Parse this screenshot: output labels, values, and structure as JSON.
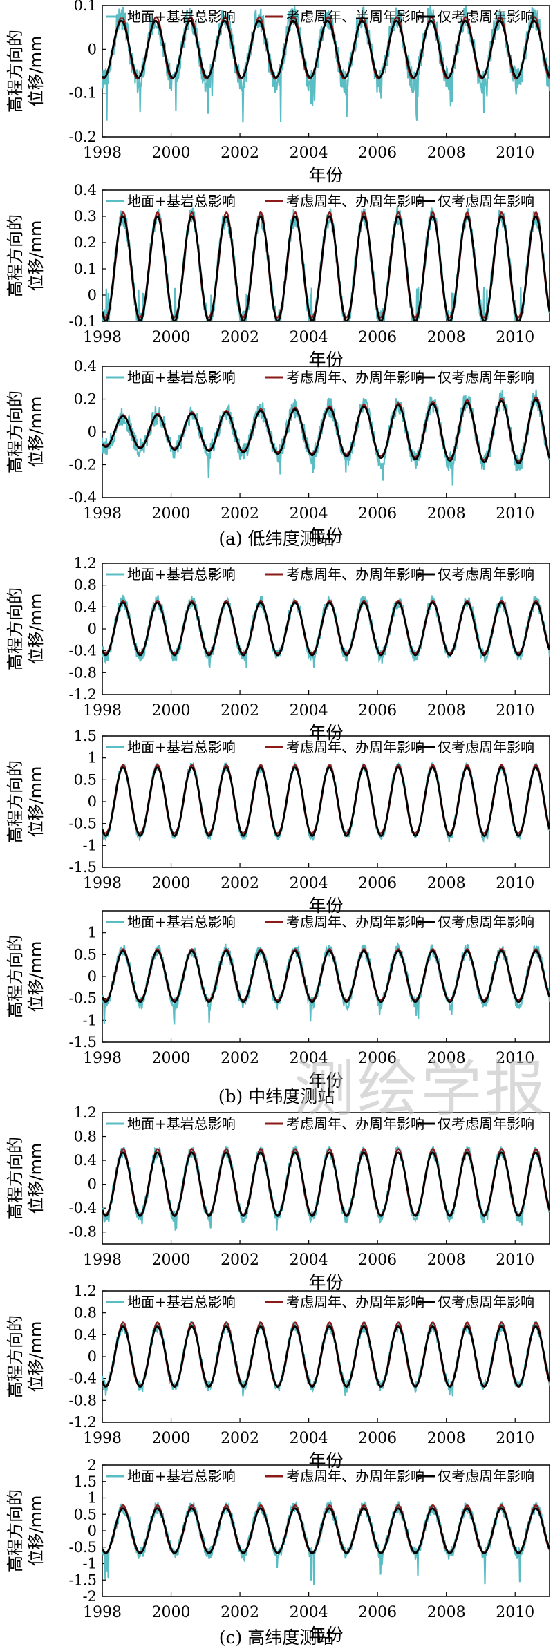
{
  "figure": {
    "watermark": "测绘学报",
    "panel_groups": [
      {
        "caption": "(a) 低纬度测站"
      },
      {
        "caption": "(b) 中纬度测站"
      },
      {
        "caption": "(c) 高纬度测站"
      }
    ]
  },
  "colors": {
    "total": "#5bbdc4",
    "semi": "#8b1a1a",
    "annual": "#000000"
  },
  "chart_data": [
    {
      "type": "line",
      "group": "a",
      "title": "",
      "xlabel": "年份",
      "ylabel": [
        "高程方向的",
        "位移/mm"
      ],
      "xlim": [
        1998,
        2011
      ],
      "ylim": [
        -0.2,
        0.1
      ],
      "yticks": [
        "0.1",
        "0",
        "-0.1",
        "-0.2"
      ],
      "ytick_values": [
        0.1,
        0,
        -0.1,
        -0.2
      ],
      "xticks": [
        "1998",
        "2000",
        "2002",
        "2004",
        "2006",
        "2008",
        "2010"
      ],
      "legend": [
        "地面+基岩总影响",
        "考虑周年、半周年影响",
        "仅考虑周年影响"
      ],
      "series": [
        {
          "name": "地面+基岩总影响",
          "amplitude": 0.075,
          "noise": 0.03,
          "spike": -0.17,
          "phase": 0.55
        },
        {
          "name": "考虑周年、半周年影响",
          "amplitude": 0.07,
          "phase": 0.55
        },
        {
          "name": "仅考虑周年影响",
          "amplitude": 0.065,
          "phase": 0.55
        }
      ]
    },
    {
      "type": "line",
      "group": "a",
      "title": "",
      "xlabel": "年份",
      "ylabel": [
        "高程方向的",
        "位移/mm"
      ],
      "xlim": [
        1998,
        2011
      ],
      "ylim": [
        -0.1,
        0.4
      ],
      "yticks": [
        "0.4",
        "0.3",
        "0.2",
        "0.1",
        "0",
        "-0.1"
      ],
      "ytick_values": [
        0.4,
        0.3,
        0.2,
        0.1,
        0,
        -0.1
      ],
      "xticks": [
        "1998",
        "2000",
        "2002",
        "2004",
        "2006",
        "2008",
        "2010"
      ],
      "legend": [
        "地面+基岩总影响",
        "考虑周年、办周年影响",
        "仅考虑周年影响"
      ],
      "series": [
        {
          "name": "地面+基岩总影响",
          "offset": 0.1,
          "amplitude": 0.2,
          "noise": 0.04,
          "spike": -0.1,
          "phase": 0.6
        },
        {
          "name": "考虑周年、办周年影响",
          "offset": 0.1,
          "amplitude": 0.2,
          "phase": 0.6
        },
        {
          "name": "仅考虑周年影响",
          "offset": 0.1,
          "amplitude": 0.2,
          "phase": 0.6
        }
      ]
    },
    {
      "type": "line",
      "group": "a",
      "title": "",
      "xlabel": "年份",
      "ylabel": [
        "高程方向的",
        "位移/mm"
      ],
      "xlim": [
        1998,
        2011
      ],
      "ylim": [
        -0.4,
        0.4
      ],
      "yticks": [
        "0.4",
        "0.2",
        "0",
        "-0.2",
        "-0.4"
      ],
      "ytick_values": [
        0.4,
        0.2,
        0,
        -0.2,
        -0.4
      ],
      "xticks": [
        "1998",
        "2000",
        "2002",
        "2004",
        "2006",
        "2008",
        "2010"
      ],
      "legend": [
        "地面+基岩总影响",
        "考虑周年、办周年影响",
        "仅考虑周年影响"
      ],
      "series": [
        {
          "name": "地面+基岩总影响",
          "amplitude_start": 0.09,
          "amplitude_end": 0.21,
          "noise": 0.06,
          "spike": -0.33,
          "phase": 0.6
        },
        {
          "name": "考虑周年、办周年影响",
          "amplitude_start": 0.09,
          "amplitude_end": 0.2,
          "phase": 0.6
        },
        {
          "name": "仅考虑周年影响",
          "amplitude_start": 0.09,
          "amplitude_end": 0.2,
          "phase": 0.6
        }
      ]
    },
    {
      "type": "line",
      "group": "b",
      "title": "",
      "xlabel": "年份",
      "ylabel": [
        "高程方向的",
        "位移/mm"
      ],
      "xlim": [
        1998,
        2011
      ],
      "ylim": [
        -1.2,
        1.2
      ],
      "yticks": [
        "1.2",
        "0.8",
        "0.4",
        "0",
        "-0.4",
        "-0.8",
        "-1.2"
      ],
      "ytick_values": [
        1.2,
        0.8,
        0.4,
        0,
        -0.4,
        -0.8,
        -1.2
      ],
      "xticks": [
        "1998",
        "2000",
        "2002",
        "2004",
        "2006",
        "2008",
        "2010"
      ],
      "legend": [
        "地面+基岩总影响",
        "考虑周年、办周年影响",
        "仅考虑周年影响"
      ],
      "series": [
        {
          "name": "地面+基岩总影响",
          "amplitude": 0.5,
          "noise": 0.12,
          "spike": -0.75,
          "phase": 0.6
        },
        {
          "name": "考虑周年、办周年影响",
          "amplitude": 0.48,
          "phase": 0.6
        },
        {
          "name": "仅考虑周年影响",
          "amplitude": 0.48,
          "phase": 0.6
        }
      ]
    },
    {
      "type": "line",
      "group": "b",
      "title": "",
      "xlabel": "年份",
      "ylabel": [
        "高程方向的",
        "位移/mm"
      ],
      "xlim": [
        1998,
        2011
      ],
      "ylim": [
        -1.5,
        1.5
      ],
      "yticks": [
        "1.5",
        "1",
        "0.5",
        "0",
        "-0.5",
        "-1",
        "-1.5"
      ],
      "ytick_values": [
        1.5,
        1,
        0.5,
        0,
        -0.5,
        -1,
        -1.5
      ],
      "xticks": [
        "1998",
        "2000",
        "2002",
        "2004",
        "2006",
        "2008",
        "2010"
      ],
      "legend": [
        "地面+基岩总影响",
        "考虑周年、办周年影响",
        "仅考虑周年影响"
      ],
      "series": [
        {
          "name": "地面+基岩总影响",
          "amplitude": 0.8,
          "noise": 0.1,
          "spike": -1.0,
          "phase": 0.6
        },
        {
          "name": "考虑周年、办周年影响",
          "amplitude": 0.78,
          "phase": 0.6
        },
        {
          "name": "仅考虑周年影响",
          "amplitude": 0.78,
          "phase": 0.6
        }
      ]
    },
    {
      "type": "line",
      "group": "b",
      "title": "",
      "xlabel": "年份",
      "ylabel": [
        "高程方向的",
        "位移/mm"
      ],
      "xlim": [
        1998,
        2011
      ],
      "ylim": [
        -1.5,
        1.5
      ],
      "yticks": [
        "1",
        "0.5",
        "0",
        "-0.5",
        "-1",
        "-1.5"
      ],
      "ytick_values": [
        1,
        0.5,
        0,
        -0.5,
        -1,
        -1.5
      ],
      "xticks": [
        "1998",
        "2000",
        "2002",
        "2004",
        "2006",
        "2008",
        "2010"
      ],
      "legend": [
        "地面+基岩总影响",
        "考虑周年、办周年影响",
        "仅考虑周年影响"
      ],
      "series": [
        {
          "name": "地面+基岩总影响",
          "amplitude": 0.6,
          "noise": 0.15,
          "spike": -1.1,
          "phase": 0.6
        },
        {
          "name": "考虑周年、办周年影响",
          "amplitude": 0.58,
          "phase": 0.6
        },
        {
          "name": "仅考虑周年影响",
          "amplitude": 0.58,
          "phase": 0.6
        }
      ]
    },
    {
      "type": "line",
      "group": "c",
      "title": "",
      "xlabel": "年份",
      "ylabel": [
        "高程方向的",
        "位移/mm"
      ],
      "xlim": [
        1998,
        2011
      ],
      "ylim": [
        -1.0,
        1.2
      ],
      "yticks": [
        "1.2",
        "0.8",
        "0.4",
        "0",
        "-0.4",
        "-0.8"
      ],
      "ytick_values": [
        1.2,
        0.8,
        0.4,
        0,
        -0.4,
        -0.8
      ],
      "xticks": [
        "1998",
        "2000",
        "2002",
        "2004",
        "2006",
        "2008",
        "2010"
      ],
      "legend": [
        "地面+基岩总影响",
        "考虑周年、办周年影响",
        "仅考虑周年影响"
      ],
      "series": [
        {
          "name": "地面+基岩总影响",
          "amplitude": 0.55,
          "noise": 0.1,
          "spike": -0.85,
          "phase": 0.6
        },
        {
          "name": "考虑周年、办周年影响",
          "amplitude": 0.55,
          "phase": 0.6
        },
        {
          "name": "仅考虑周年影响",
          "amplitude": 0.53,
          "phase": 0.6
        }
      ]
    },
    {
      "type": "line",
      "group": "c",
      "title": "",
      "xlabel": "年份",
      "ylabel": [
        "高程方向的",
        "位移/mm"
      ],
      "xlim": [
        1998,
        2011
      ],
      "ylim": [
        -1.2,
        1.2
      ],
      "yticks": [
        "1.2",
        "0.8",
        "0.4",
        "0",
        "-0.4",
        "-0.8",
        "-1.2"
      ],
      "ytick_values": [
        1.2,
        0.8,
        0.4,
        0,
        -0.4,
        -0.8,
        -1.2
      ],
      "xticks": [
        "1998",
        "2000",
        "2002",
        "2004",
        "2006",
        "2008",
        "2010"
      ],
      "legend": [
        "地面+基岩总影响",
        "考虑周年、办周年影响",
        "仅考虑周年影响"
      ],
      "series": [
        {
          "name": "地面+基岩总影响",
          "amplitude": 0.55,
          "noise": 0.1,
          "spike": -0.75,
          "phase": 0.6
        },
        {
          "name": "考虑周年、办周年影响",
          "amplitude": 0.58,
          "phase": 0.6
        },
        {
          "name": "仅考虑周年影响",
          "amplitude": 0.55,
          "phase": 0.6
        }
      ]
    },
    {
      "type": "line",
      "group": "c",
      "title": "",
      "xlabel": "年份",
      "ylabel": [
        "高程方向的",
        "位移/mm"
      ],
      "xlim": [
        1998,
        2011
      ],
      "ylim": [
        -2,
        2
      ],
      "yticks": [
        "2",
        "1.5",
        "1",
        "0.5",
        "0",
        "-0.5",
        "-1",
        "-1.5",
        "-2"
      ],
      "ytick_values": [
        2,
        1.5,
        1,
        0.5,
        0,
        -0.5,
        -1,
        -1.5,
        -2
      ],
      "xticks": [
        "1998",
        "2000",
        "2002",
        "2004",
        "2006",
        "2008",
        "2010"
      ],
      "legend": [
        "地面+基岩总影响",
        "考虑周年、办周年影响",
        "仅考虑周年影响"
      ],
      "series": [
        {
          "name": "地面+基岩总影响",
          "amplitude": 0.7,
          "noise": 0.2,
          "spike": -1.7,
          "phase": 0.6
        },
        {
          "name": "考虑周年、办周年影响",
          "amplitude": 0.72,
          "phase": 0.6
        },
        {
          "name": "仅考虑周年影响",
          "amplitude": 0.68,
          "phase": 0.6
        }
      ]
    }
  ]
}
